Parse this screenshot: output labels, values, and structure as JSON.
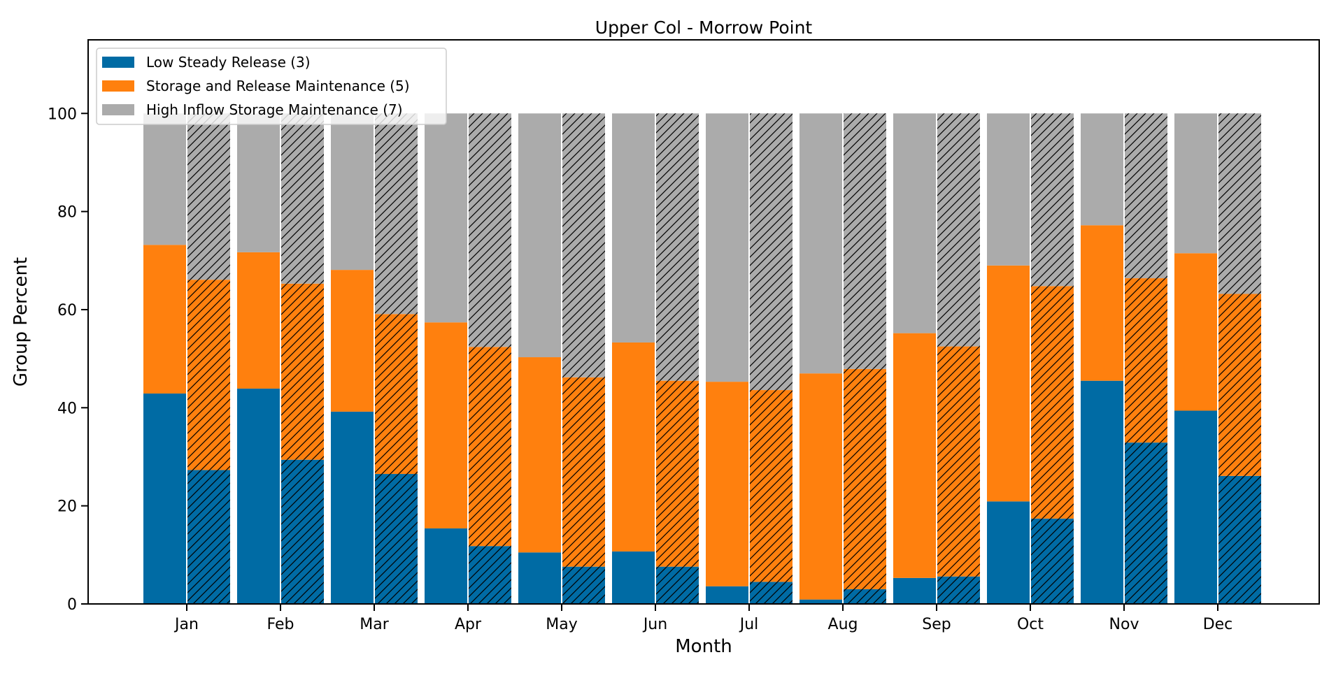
{
  "chart_data": {
    "type": "bar",
    "title": "Upper Col - Morrow Point",
    "xlabel": "Month",
    "ylabel": "Group Percent",
    "ylim": [
      0,
      115
    ],
    "yticks": [
      0,
      20,
      40,
      60,
      80,
      100
    ],
    "stacked": true,
    "grouped": true,
    "grid": false,
    "legend_position": "top-left",
    "categories": [
      "Jan",
      "Feb",
      "Mar",
      "Apr",
      "May",
      "Jun",
      "Jul",
      "Aug",
      "Sep",
      "Oct",
      "Nov",
      "Dec"
    ],
    "series": [
      {
        "name": "Low Steady Release (3)",
        "color": "#006ba4",
        "solid": [
          42.9,
          43.9,
          39.2,
          15.4,
          10.5,
          10.7,
          3.6,
          0.9,
          5.3,
          20.9,
          45.5,
          39.4
        ],
        "hatched": [
          27.3,
          29.4,
          26.5,
          11.8,
          7.6,
          7.6,
          4.5,
          3.0,
          5.6,
          17.4,
          32.9,
          26.1
        ]
      },
      {
        "name": "Storage and Release Maintenance (5)",
        "color": "#ff800e",
        "solid": [
          30.3,
          27.8,
          28.9,
          42.0,
          39.8,
          42.6,
          41.7,
          46.1,
          49.9,
          48.1,
          31.7,
          32.1
        ],
        "hatched": [
          38.8,
          35.9,
          32.6,
          40.6,
          38.6,
          37.9,
          39.1,
          44.9,
          46.9,
          47.4,
          33.5,
          37.1
        ]
      },
      {
        "name": "High Inflow Storage Maintenance (7)",
        "color": "#ababab",
        "solid": [
          26.8,
          28.3,
          31.9,
          42.6,
          49.7,
          46.7,
          54.7,
          53.0,
          44.8,
          31.0,
          22.8,
          28.5
        ],
        "hatched": [
          33.9,
          34.7,
          40.9,
          47.6,
          53.8,
          54.5,
          56.4,
          52.1,
          47.5,
          35.2,
          33.6,
          36.8
        ]
      }
    ]
  }
}
